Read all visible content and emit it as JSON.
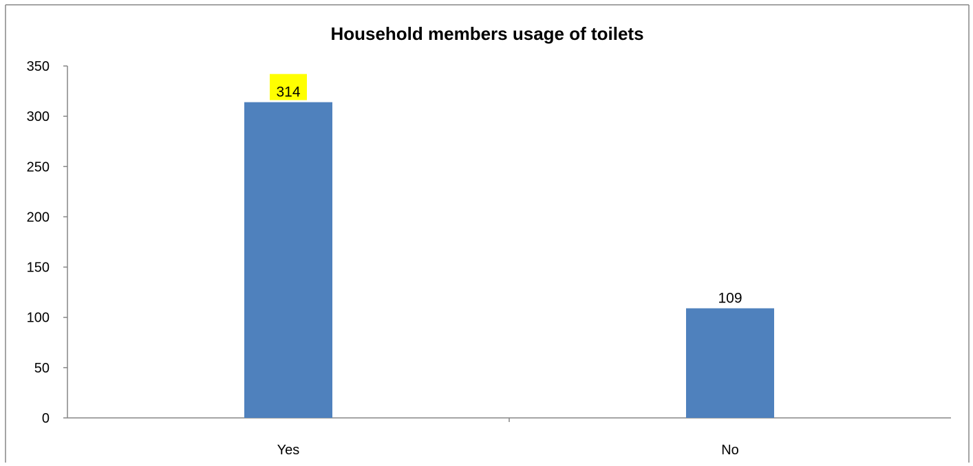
{
  "chart_data": {
    "type": "bar",
    "title": "Household members usage of toilets",
    "categories": [
      "Yes",
      "No"
    ],
    "values": [
      314,
      109
    ],
    "data_labels": [
      "314",
      "109"
    ],
    "highlighted_label_index": 0,
    "ylim": [
      0,
      350
    ],
    "yticks": [
      0,
      50,
      100,
      150,
      200,
      250,
      300,
      350
    ],
    "ytick_labels": [
      "0",
      "50",
      "100",
      "150",
      "200",
      "250",
      "300",
      "350"
    ],
    "xlabel": "",
    "ylabel": "",
    "grid": false,
    "legend": "none",
    "colors": {
      "bar": "#4F81BD",
      "label_highlight": "#FFFF00",
      "border": "#868686",
      "axis": "#868686"
    }
  }
}
